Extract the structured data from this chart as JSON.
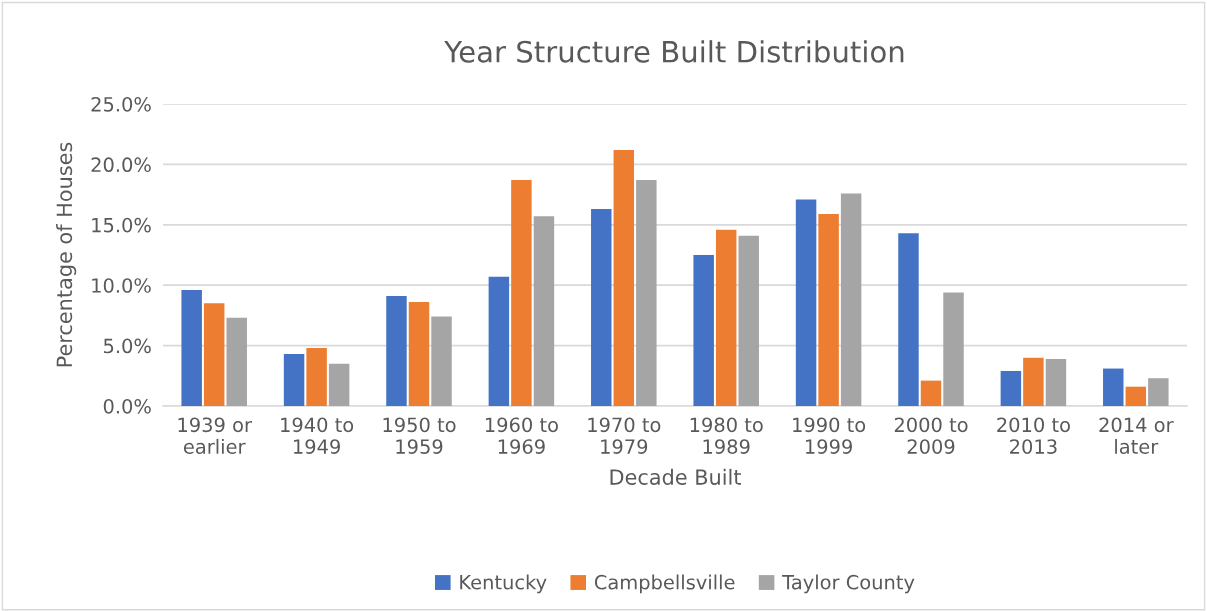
{
  "chart_data": {
    "type": "bar",
    "title": "Year Structure Built Distribution",
    "xlabel": "Decade Built",
    "ylabel": "Percentage of Houses",
    "categories": [
      "1939 or\nearlier",
      "1940 to\n1949",
      "1950 to\n1959",
      "1960 to\n1969",
      "1970 to\n1979",
      "1980 to\n1989",
      "1990 to\n1999",
      "2000 to\n2009",
      "2010 to\n2013",
      "2014 or\nlater"
    ],
    "series": [
      {
        "name": "Kentucky",
        "color": "#4472c4",
        "values": [
          9.6,
          4.3,
          9.1,
          10.7,
          16.3,
          12.5,
          17.1,
          14.3,
          2.9,
          3.1
        ]
      },
      {
        "name": "Campbellsville",
        "color": "#ed7d31",
        "values": [
          8.5,
          4.8,
          8.6,
          18.7,
          21.2,
          14.6,
          15.9,
          2.1,
          4.0,
          1.6
        ]
      },
      {
        "name": "Taylor County",
        "color": "#a5a5a5",
        "values": [
          7.3,
          3.5,
          7.4,
          15.7,
          18.7,
          14.1,
          17.6,
          9.4,
          3.9,
          2.3
        ]
      }
    ],
    "ylim": [
      0,
      25
    ],
    "yticks": [
      {
        "value": 0,
        "label": "0.0%"
      },
      {
        "value": 5,
        "label": "5.0%"
      },
      {
        "value": 10,
        "label": "10.0%"
      },
      {
        "value": 15,
        "label": "15.0%"
      },
      {
        "value": 20,
        "label": "20.0%"
      },
      {
        "value": 25,
        "label": "25.0%"
      }
    ],
    "grid": "y",
    "legend": "bottom"
  }
}
